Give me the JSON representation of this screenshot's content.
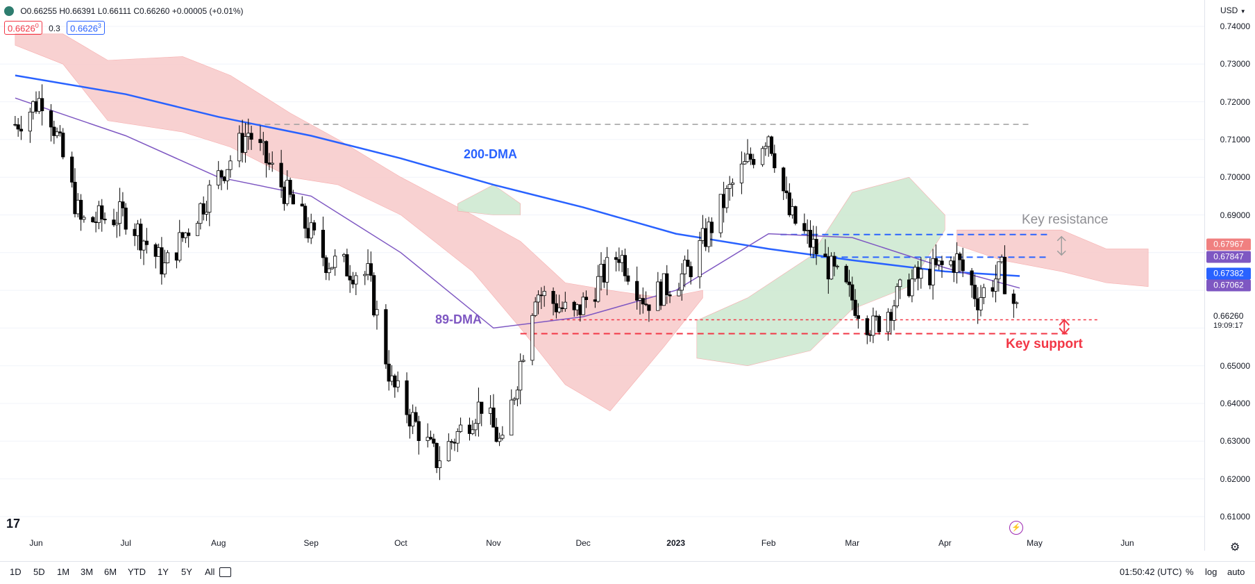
{
  "legend": {
    "ohlc": "O0.66255 H0.66391 L0.66111 C0.66260 +0.00005 (+0.01%)",
    "bid": "0.6626",
    "bid_sup": "0",
    "spread": "0.3",
    "ask": "0.6626",
    "ask_sup": "3"
  },
  "currency": "USD",
  "price_ticks": [
    "0.74000",
    "0.73000",
    "0.72000",
    "0.71000",
    "0.70000",
    "0.69000",
    "0.65000",
    "0.64000",
    "0.63000",
    "0.62000",
    "0.61000"
  ],
  "price_tags": [
    {
      "label": "0.67967",
      "color": "#f08080",
      "price": 0.67967
    },
    {
      "label": "0.67847",
      "color": "#7e57c2",
      "price": 0.67847
    },
    {
      "label": "0.67382",
      "color": "#2962ff",
      "price": 0.67382
    },
    {
      "label": "0.67062",
      "color": "#7e57c2",
      "price": 0.67062
    }
  ],
  "last_price": "0.66260",
  "countdown": "19:09:17",
  "time_ticks": [
    "Jun",
    "Jul",
    "Aug",
    "Sep",
    "Oct",
    "Nov",
    "Dec",
    "2023",
    "Feb",
    "Mar",
    "Apr",
    "May",
    "Jun"
  ],
  "annotations": {
    "dma200": "200-DMA",
    "dma89": "89-DMA",
    "key_resistance": "Key resistance",
    "key_support": "Key support"
  },
  "ranges": [
    "1D",
    "5D",
    "1M",
    "3M",
    "6M",
    "YTD",
    "1Y",
    "5Y",
    "All"
  ],
  "clock": "01:50:42 (UTC)",
  "scale_buttons": [
    "%",
    "log",
    "auto"
  ],
  "colors": {
    "up": "#ffffff",
    "down": "#000000",
    "ma200": "#2962ff",
    "ma89": "#7e57c2",
    "cloud_bear": "#f8cdcd",
    "cloud_bull": "#cfe9d2",
    "support": "#f23645",
    "resistance": "#2962ff"
  },
  "chart_data": {
    "type": "candlestick",
    "symbol_quote": "USD",
    "ylim": [
      0.605,
      0.745
    ],
    "x_range": [
      "2022-05-25",
      "2023-06-08"
    ],
    "series": [
      {
        "name": "200-DMA",
        "points": [
          [
            "2022-05-25",
            0.727
          ],
          [
            "2022-07-01",
            0.722
          ],
          [
            "2022-08-01",
            0.716
          ],
          [
            "2022-09-01",
            0.711
          ],
          [
            "2022-10-01",
            0.705
          ],
          [
            "2022-11-01",
            0.698
          ],
          [
            "2022-12-01",
            0.692
          ],
          [
            "2023-01-01",
            0.685
          ],
          [
            "2023-02-01",
            0.681
          ],
          [
            "2023-03-01",
            0.678
          ],
          [
            "2023-04-01",
            0.675
          ],
          [
            "2023-04-26",
            0.6738
          ]
        ]
      },
      {
        "name": "89-DMA",
        "points": [
          [
            "2022-05-25",
            0.721
          ],
          [
            "2022-07-01",
            0.711
          ],
          [
            "2022-08-01",
            0.7
          ],
          [
            "2022-09-01",
            0.695
          ],
          [
            "2022-10-01",
            0.68
          ],
          [
            "2022-11-01",
            0.66
          ],
          [
            "2022-12-01",
            0.663
          ],
          [
            "2023-01-01",
            0.67
          ],
          [
            "2023-02-01",
            0.685
          ],
          [
            "2023-03-01",
            0.684
          ],
          [
            "2023-04-01",
            0.676
          ],
          [
            "2023-04-26",
            0.6706
          ]
        ]
      }
    ],
    "levels": [
      {
        "label": "Key resistance",
        "price": 0.6848
      },
      {
        "label": "Key resistance",
        "price": 0.6788
      },
      {
        "label": "Key support",
        "price": 0.6622
      },
      {
        "label": "Key support",
        "price": 0.6585
      },
      {
        "price": 0.714
      }
    ]
  }
}
